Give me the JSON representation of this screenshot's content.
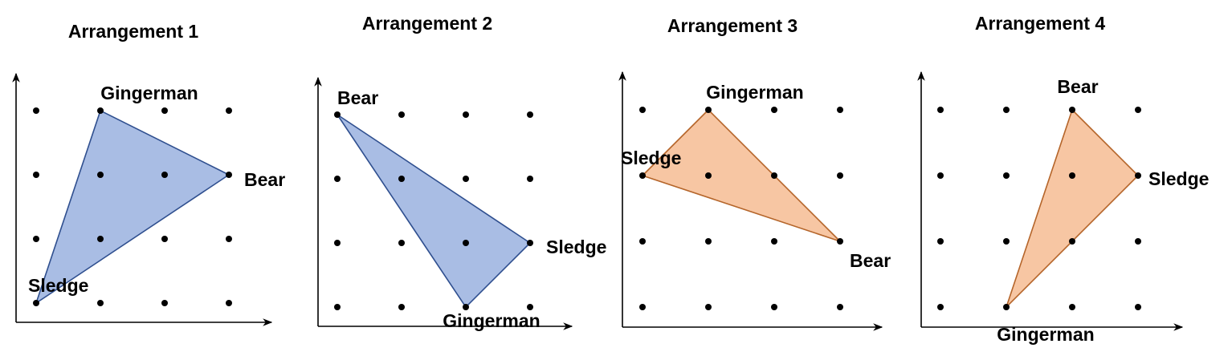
{
  "colors": {
    "blue_fill": "#a9bde4",
    "blue_stroke": "#2f4f8f",
    "orange_fill": "#f7c6a3",
    "orange_stroke": "#b5652a",
    "dot": "#000000"
  },
  "grid": {
    "columns": 4,
    "rows": 4
  },
  "panels": [
    {
      "title": "Arrangement 1",
      "color": "blue",
      "vertices": [
        {
          "name": "Gingerman",
          "col": 1,
          "row": 3
        },
        {
          "name": "Bear",
          "col": 3,
          "row": 2
        },
        {
          "name": "Sledge",
          "col": 0,
          "row": 0
        }
      ]
    },
    {
      "title": "Arrangement 2",
      "color": "blue",
      "vertices": [
        {
          "name": "Bear",
          "col": 0,
          "row": 3
        },
        {
          "name": "Sledge",
          "col": 3,
          "row": 1
        },
        {
          "name": "Gingerman",
          "col": 2,
          "row": 0
        }
      ]
    },
    {
      "title": "Arrangement 3",
      "color": "orange",
      "vertices": [
        {
          "name": "Gingerman",
          "col": 1,
          "row": 3
        },
        {
          "name": "Sledge",
          "col": 0,
          "row": 2
        },
        {
          "name": "Bear",
          "col": 3,
          "row": 1
        }
      ]
    },
    {
      "title": "Arrangement 4",
      "color": "orange",
      "vertices": [
        {
          "name": "Bear",
          "col": 2,
          "row": 3
        },
        {
          "name": "Sledge",
          "col": 3,
          "row": 2
        },
        {
          "name": "Gingerman",
          "col": 1,
          "row": 0
        }
      ]
    }
  ]
}
